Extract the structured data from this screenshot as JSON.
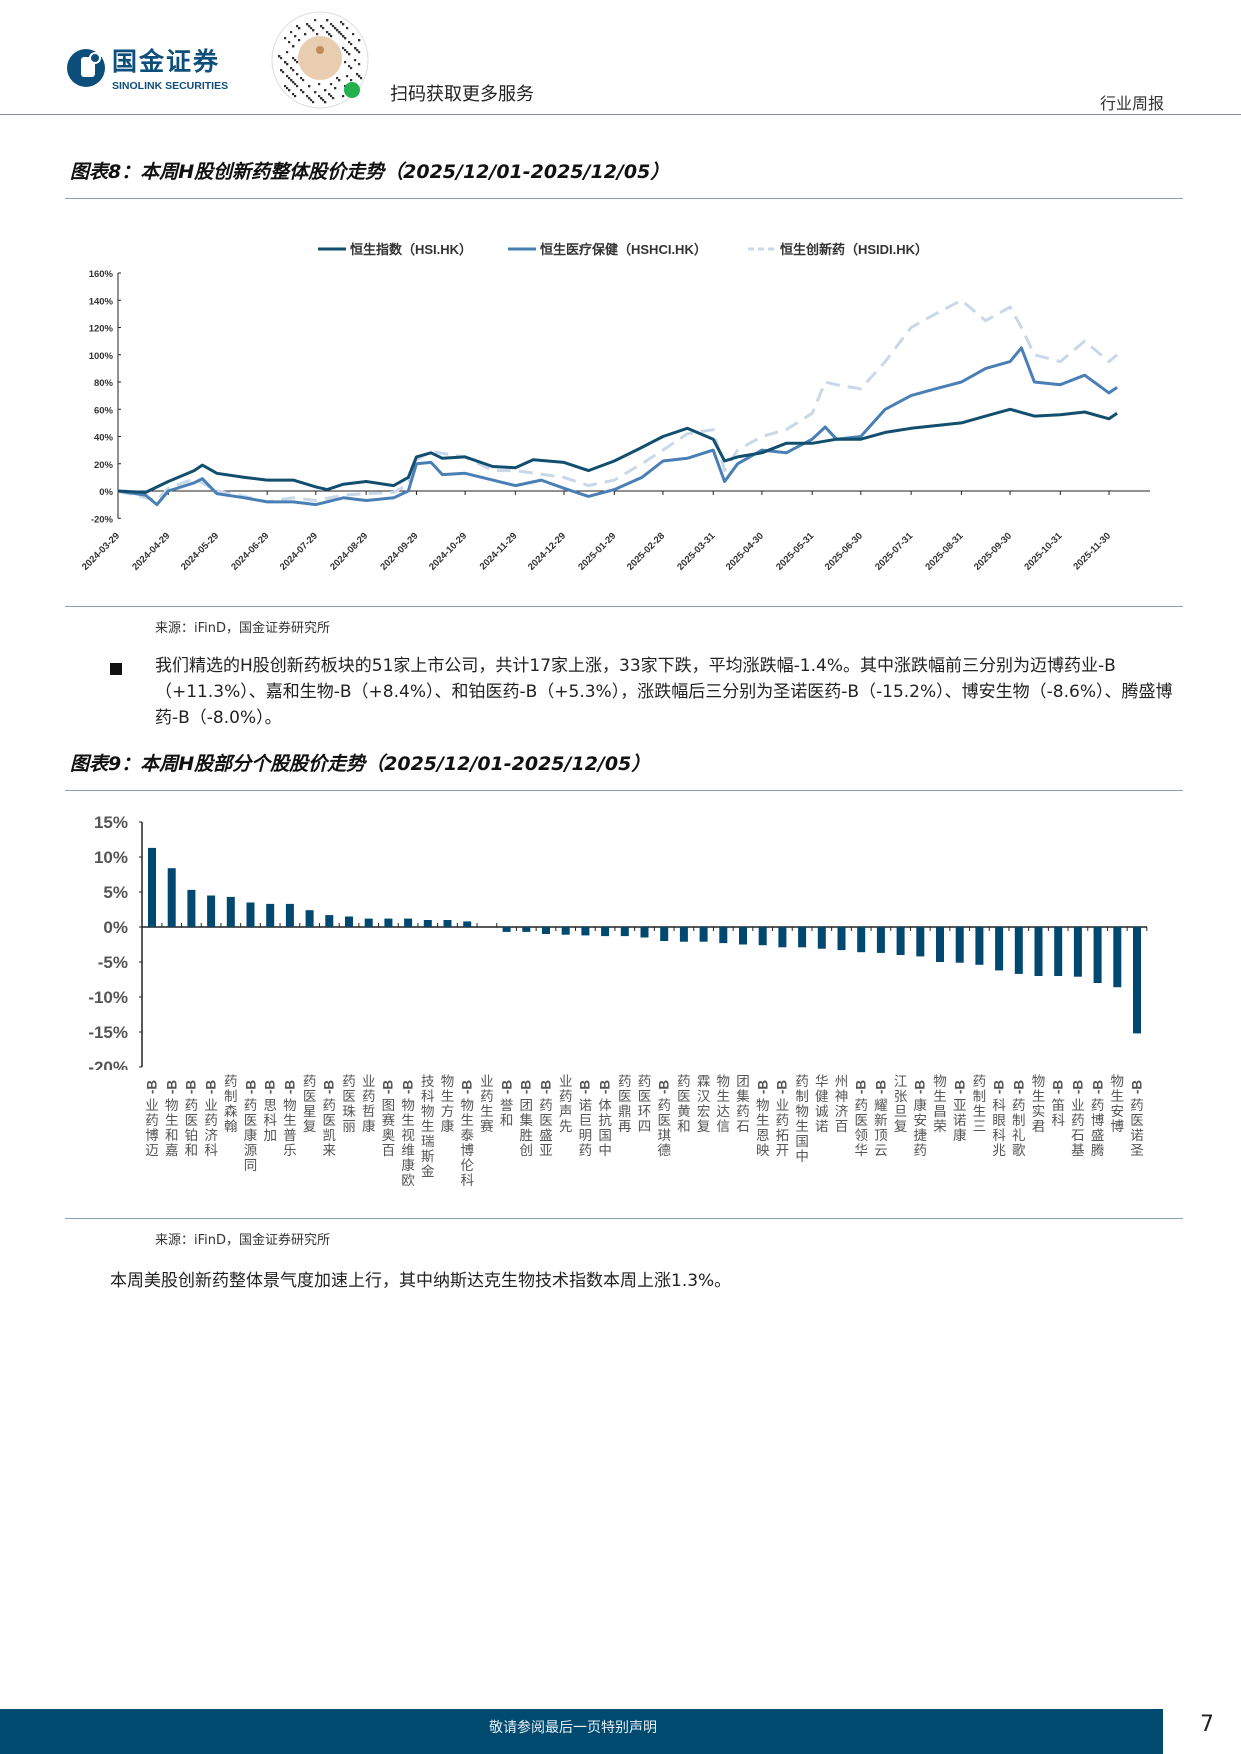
{
  "header": {
    "logo_cn": "国金证券",
    "logo_en": "SINOLINK SECURITIES",
    "qr_badge": "国金证券",
    "scan_text": "扫码获取更多服务",
    "report_type": "行业周报"
  },
  "figure8": {
    "title": "图表8：本周H股创新药整体股价走势（2025/12/01-2025/12/05）",
    "source": "来源：iFinD，国金证券研究所"
  },
  "paragraph1": "我们精选的H股创新药板块的51家上市公司，共计17家上涨，33家下跌，平均涨跌幅-1.4%。其中涨跌幅前三分别为迈博药业-B（+11.3%）、嘉和生物-B（+8.4%）、和铂医药-B（+5.3%），涨跌幅后三分别为圣诺医药-B（-15.2%）、博安生物（-8.6%）、腾盛博药-B（-8.0%）。",
  "figure9": {
    "title": "图表9：本周H股部分个股股价走势（2025/12/01-2025/12/05）",
    "source": "来源：iFinD，国金证券研究所"
  },
  "paragraph2": "本周美股创新药整体景气度加速上行，其中纳斯达克生物技术指数本周上涨1.3%。",
  "footer": {
    "disclaimer": "敬请参阅最后一页特别声明",
    "page": "7"
  },
  "chart_data": [
    {
      "type": "line",
      "title": "",
      "xlabel": "",
      "ylabel": "",
      "ylim": [
        -20,
        160
      ],
      "y_ticks": [
        "160%",
        "140%",
        "120%",
        "100%",
        "80%",
        "60%",
        "40%",
        "20%",
        "0%",
        "-20%"
      ],
      "x_ticks": [
        "2024-03-29",
        "2024-04-29",
        "2024-05-29",
        "2024-06-29",
        "2024-07-29",
        "2024-08-29",
        "2024-09-29",
        "2024-10-29",
        "2024-11-29",
        "2024-12-29",
        "2025-01-29",
        "2025-02-28",
        "2025-03-31",
        "2025-04-30",
        "2025-05-31",
        "2025-06-30",
        "2025-07-31",
        "2025-08-31",
        "2025-09-30",
        "2025-10-31",
        "2025-11-30"
      ],
      "grid": false,
      "legend": "top",
      "series": [
        {
          "name": "恒生指数（HSI.HK）",
          "color": "#124e6e",
          "dash": false,
          "points": [
            [
              "2024-03-29",
              0
            ],
            [
              "2024-04-15",
              -1
            ],
            [
              "2024-04-29",
              7
            ],
            [
              "2024-05-15",
              15
            ],
            [
              "2024-05-20",
              19
            ],
            [
              "2024-05-29",
              13
            ],
            [
              "2024-06-15",
              10
            ],
            [
              "2024-06-29",
              8
            ],
            [
              "2024-07-15",
              8
            ],
            [
              "2024-07-29",
              3
            ],
            [
              "2024-08-05",
              1
            ],
            [
              "2024-08-15",
              5
            ],
            [
              "2024-08-29",
              7
            ],
            [
              "2024-09-15",
              4
            ],
            [
              "2024-09-24",
              10
            ],
            [
              "2024-09-29",
              25
            ],
            [
              "2024-10-08",
              28
            ],
            [
              "2024-10-15",
              24
            ],
            [
              "2024-10-29",
              25
            ],
            [
              "2024-11-15",
              18
            ],
            [
              "2024-11-29",
              17
            ],
            [
              "2024-12-10",
              23
            ],
            [
              "2024-12-29",
              21
            ],
            [
              "2025-01-13",
              15
            ],
            [
              "2025-01-29",
              22
            ],
            [
              "2025-02-15",
              32
            ],
            [
              "2025-02-28",
              40
            ],
            [
              "2025-03-15",
              46
            ],
            [
              "2025-03-31",
              38
            ],
            [
              "2025-04-07",
              22
            ],
            [
              "2025-04-15",
              25
            ],
            [
              "2025-04-30",
              28
            ],
            [
              "2025-05-15",
              35
            ],
            [
              "2025-05-31",
              35
            ],
            [
              "2025-06-15",
              38
            ],
            [
              "2025-06-30",
              38
            ],
            [
              "2025-07-15",
              43
            ],
            [
              "2025-07-31",
              46
            ],
            [
              "2025-08-15",
              48
            ],
            [
              "2025-08-31",
              50
            ],
            [
              "2025-09-15",
              55
            ],
            [
              "2025-09-30",
              60
            ],
            [
              "2025-10-15",
              55
            ],
            [
              "2025-10-31",
              56
            ],
            [
              "2025-11-15",
              58
            ],
            [
              "2025-11-30",
              53
            ],
            [
              "2025-12-05",
              57
            ]
          ]
        },
        {
          "name": "恒生医疗保健（HSHCI.HK）",
          "color": "#4a7fb5",
          "dash": false,
          "points": [
            [
              "2024-03-29",
              0
            ],
            [
              "2024-04-15",
              -3
            ],
            [
              "2024-04-22",
              -10
            ],
            [
              "2024-04-29",
              0
            ],
            [
              "2024-05-15",
              6
            ],
            [
              "2024-05-20",
              9
            ],
            [
              "2024-05-29",
              -2
            ],
            [
              "2024-06-15",
              -5
            ],
            [
              "2024-06-29",
              -8
            ],
            [
              "2024-07-15",
              -8
            ],
            [
              "2024-07-29",
              -10
            ],
            [
              "2024-08-15",
              -5
            ],
            [
              "2024-08-29",
              -7
            ],
            [
              "2024-09-15",
              -5
            ],
            [
              "2024-09-24",
              0
            ],
            [
              "2024-09-29",
              20
            ],
            [
              "2024-10-08",
              21
            ],
            [
              "2024-10-15",
              12
            ],
            [
              "2024-10-29",
              13
            ],
            [
              "2024-11-15",
              8
            ],
            [
              "2024-11-29",
              4
            ],
            [
              "2024-12-15",
              8
            ],
            [
              "2024-12-29",
              2
            ],
            [
              "2025-01-13",
              -4
            ],
            [
              "2025-01-29",
              1
            ],
            [
              "2025-02-15",
              10
            ],
            [
              "2025-02-28",
              22
            ],
            [
              "2025-03-15",
              24
            ],
            [
              "2025-03-31",
              30
            ],
            [
              "2025-04-07",
              7
            ],
            [
              "2025-04-15",
              20
            ],
            [
              "2025-04-30",
              30
            ],
            [
              "2025-05-15",
              28
            ],
            [
              "2025-05-31",
              38
            ],
            [
              "2025-06-08",
              47
            ],
            [
              "2025-06-15",
              38
            ],
            [
              "2025-06-30",
              40
            ],
            [
              "2025-07-15",
              60
            ],
            [
              "2025-07-31",
              70
            ],
            [
              "2025-08-15",
              75
            ],
            [
              "2025-08-31",
              80
            ],
            [
              "2025-09-15",
              90
            ],
            [
              "2025-09-30",
              95
            ],
            [
              "2025-10-07",
              105
            ],
            [
              "2025-10-15",
              80
            ],
            [
              "2025-10-31",
              78
            ],
            [
              "2025-11-15",
              85
            ],
            [
              "2025-11-30",
              72
            ],
            [
              "2025-12-05",
              76
            ]
          ]
        },
        {
          "name": "恒生创新药（HSIDI.HK）",
          "color": "#c9d8e8",
          "dash": true,
          "points": [
            [
              "2024-03-29",
              0
            ],
            [
              "2024-04-22",
              -7
            ],
            [
              "2024-04-29",
              2
            ],
            [
              "2024-05-15",
              9
            ],
            [
              "2024-05-29",
              0
            ],
            [
              "2024-06-15",
              -4
            ],
            [
              "2024-06-29",
              -8
            ],
            [
              "2024-07-15",
              -5
            ],
            [
              "2024-07-29",
              -7
            ],
            [
              "2024-08-15",
              -3
            ],
            [
              "2024-08-29",
              -2
            ],
            [
              "2024-09-15",
              -1
            ],
            [
              "2024-09-24",
              5
            ],
            [
              "2024-09-29",
              23
            ],
            [
              "2024-10-08",
              29
            ],
            [
              "2024-10-29",
              25
            ],
            [
              "2024-11-15",
              15
            ],
            [
              "2024-11-29",
              15
            ],
            [
              "2024-12-29",
              10
            ],
            [
              "2025-01-13",
              4
            ],
            [
              "2025-01-29",
              8
            ],
            [
              "2025-02-15",
              20
            ],
            [
              "2025-02-28",
              30
            ],
            [
              "2025-03-15",
              42
            ],
            [
              "2025-03-31",
              45
            ],
            [
              "2025-04-07",
              15
            ],
            [
              "2025-04-15",
              30
            ],
            [
              "2025-04-30",
              40
            ],
            [
              "2025-05-15",
              45
            ],
            [
              "2025-05-31",
              57
            ],
            [
              "2025-06-08",
              80
            ],
            [
              "2025-06-15",
              78
            ],
            [
              "2025-06-30",
              75
            ],
            [
              "2025-07-15",
              95
            ],
            [
              "2025-07-31",
              120
            ],
            [
              "2025-08-15",
              130
            ],
            [
              "2025-08-31",
              140
            ],
            [
              "2025-09-15",
              125
            ],
            [
              "2025-09-30",
              135
            ],
            [
              "2025-10-07",
              120
            ],
            [
              "2025-10-15",
              100
            ],
            [
              "2025-10-31",
              95
            ],
            [
              "2025-11-15",
              110
            ],
            [
              "2025-11-30",
              95
            ],
            [
              "2025-12-05",
              100
            ]
          ]
        }
      ]
    },
    {
      "type": "bar",
      "title": "",
      "xlabel": "",
      "ylabel": "",
      "ylim": [
        -20,
        15
      ],
      "y_ticks": [
        "15%",
        "10%",
        "5%",
        "0%",
        "-5%",
        "-10%",
        "-15%",
        "-20%"
      ],
      "grid": false,
      "color": "#00486f",
      "categories": [
        "迈博药业-B",
        "嘉和生物-B",
        "和铂医药-B",
        "科济药业-B",
        "翰森制药",
        "同源康医药-B",
        "加科思-B",
        "乐普生物-B",
        "复星医药",
        "来凯医药-B",
        "丽珠医药",
        "康哲药业",
        "百奥赛图-B",
        "欧康维视生物-B",
        "金斯瑞生物科技",
        "康方生物",
        "科伦博泰生物-B",
        "赛生药业",
        "和誉-B",
        "创胜集团-B",
        "亚盛医药-B",
        "先声药业",
        "药明巨诺-B",
        "中国抗体-B",
        "再鼎医药",
        "四环医药",
        "德琪医药-B",
        "和黄医药",
        "复宏汉霖",
        "信达生物",
        "石药集团",
        "映恩生物-B",
        "开拓药业-B",
        "中国生物制药",
        "诺诚健华",
        "百济神州",
        "华领医药-B",
        "云顶新耀-B",
        "复旦张江",
        "药捷安康-B",
        "荣昌生物",
        "康诺亚-B",
        "三生制药",
        "兆科眼科-B",
        "歌礼制药-B",
        "君实生物",
        "科笛-B",
        "基石药业-B",
        "腾盛博药-B",
        "博安生物",
        "圣诺医药-B"
      ],
      "values": [
        11.3,
        8.4,
        5.3,
        4.5,
        4.3,
        3.5,
        3.3,
        3.3,
        2.4,
        1.7,
        1.5,
        1.2,
        1.2,
        1.2,
        1.0,
        1.0,
        0.8,
        0.0,
        -0.7,
        -0.7,
        -1.0,
        -1.1,
        -1.2,
        -1.3,
        -1.3,
        -1.5,
        -2.0,
        -2.1,
        -2.1,
        -2.3,
        -2.5,
        -2.6,
        -2.9,
        -2.9,
        -3.1,
        -3.3,
        -3.6,
        -3.7,
        -4.0,
        -4.2,
        -5.0,
        -5.1,
        -5.4,
        -6.2,
        -6.7,
        -7.0,
        -7.0,
        -7.1,
        -8.0,
        -8.6,
        -15.2
      ]
    }
  ]
}
